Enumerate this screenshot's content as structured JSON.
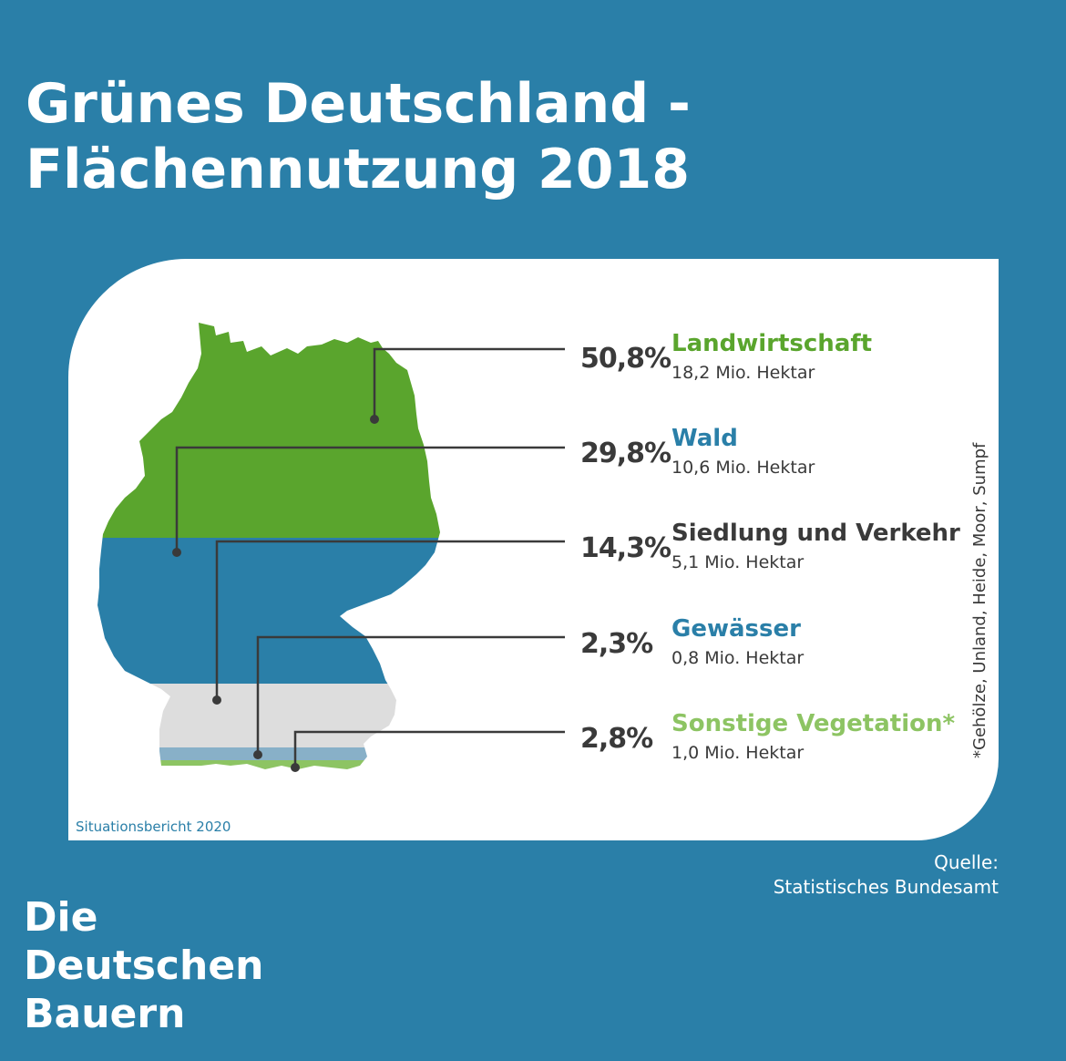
{
  "title": {
    "line1": "Grünes Deutschland -",
    "line2": "Flächennutzung 2018"
  },
  "chart_data": {
    "type": "table",
    "categories": [
      "Landwirtschaft",
      "Wald",
      "Siedlung und Verkehr",
      "Gewässer",
      "Sonstige Vegetation*"
    ],
    "entries": [
      {
        "percent": "50,8%",
        "label": "Landwirtschaft",
        "area": "18,2 Mio. Hektar",
        "color": "#5aa52d",
        "value_percent": 50.8,
        "value_mio_ha": 18.2
      },
      {
        "percent": "29,8%",
        "label": "Wald",
        "area": "10,6 Mio. Hektar",
        "color": "#2a7fa8",
        "value_percent": 29.8,
        "value_mio_ha": 10.6
      },
      {
        "percent": "14,3%",
        "label": "Siedlung und Verkehr",
        "area": "5,1 Mio. Hektar",
        "color": "#3a3a3a",
        "value_percent": 14.3,
        "value_mio_ha": 5.1
      },
      {
        "percent": "2,3%",
        "label": "Gewässer",
        "area": "0,8 Mio. Hektar",
        "color": "#2a7fa8",
        "value_percent": 2.3,
        "value_mio_ha": 0.8
      },
      {
        "percent": "2,8%",
        "label": "Sonstige Vegetation*",
        "area": "1,0 Mio. Hektar",
        "color": "#8dc463",
        "value_percent": 2.8,
        "value_mio_ha": 1.0
      }
    ],
    "map_fill_colors": {
      "landwirtschaft": "#5aa52d",
      "wald": "#2a7fa8",
      "siedlung": "#dddddd",
      "gewaesser": "#88b0c8",
      "vegetation": "#8dc463"
    }
  },
  "footnote": "*Gehölze, Unland, Heide, Moor, Sumpf",
  "report": "Situationsbericht 2020",
  "source": {
    "line1": "Quelle:",
    "line2": "Statistisches Bundesamt"
  },
  "logo": {
    "line1": "Die",
    "line2": "Deutschen",
    "line3": "Bauern"
  }
}
